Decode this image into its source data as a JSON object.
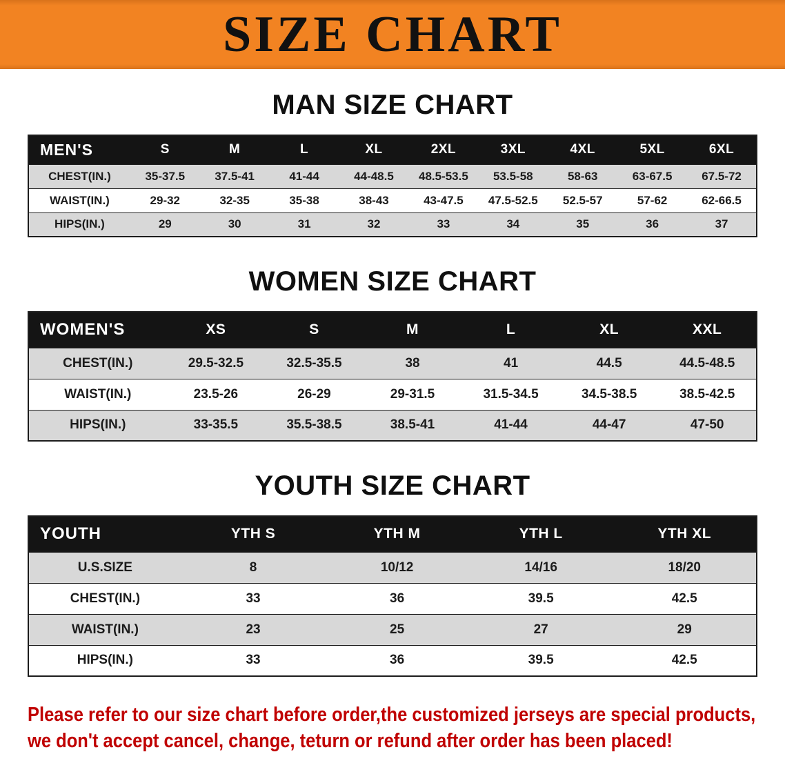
{
  "banner": {
    "title": "SIZE CHART"
  },
  "colors": {
    "banner_bg": "#F28322",
    "banner_bg_edge": "#D9731A",
    "header_bar": "#141414",
    "row_alt": "#D8D8D8",
    "disclaimer_text": "#C00000",
    "title_text": "#111111"
  },
  "sections": [
    {
      "id": "mens",
      "heading": "MAN SIZE CHART",
      "table": {
        "header": [
          "MEN'S",
          "S",
          "M",
          "L",
          "XL",
          "2XL",
          "3XL",
          "4XL",
          "5XL",
          "6XL"
        ],
        "rows": [
          [
            "CHEST(IN.)",
            "35-37.5",
            "37.5-41",
            "41-44",
            "44-48.5",
            "48.5-53.5",
            "53.5-58",
            "58-63",
            "63-67.5",
            "67.5-72"
          ],
          [
            "WAIST(IN.)",
            "29-32",
            "32-35",
            "35-38",
            "38-43",
            "43-47.5",
            "47.5-52.5",
            "52.5-57",
            "57-62",
            "62-66.5"
          ],
          [
            "HIPS(IN.)",
            "29",
            "30",
            "31",
            "32",
            "33",
            "34",
            "35",
            "36",
            "37"
          ]
        ]
      }
    },
    {
      "id": "womens",
      "heading": "WOMEN SIZE CHART",
      "table": {
        "header": [
          "WOMEN'S",
          "XS",
          "S",
          "M",
          "L",
          "XL",
          "XXL"
        ],
        "rows": [
          [
            "CHEST(IN.)",
            "29.5-32.5",
            "32.5-35.5",
            "38",
            "41",
            "44.5",
            "44.5-48.5"
          ],
          [
            "WAIST(IN.)",
            "23.5-26",
            "26-29",
            "29-31.5",
            "31.5-34.5",
            "34.5-38.5",
            "38.5-42.5"
          ],
          [
            "HIPS(IN.)",
            "33-35.5",
            "35.5-38.5",
            "38.5-41",
            "41-44",
            "44-47",
            "47-50"
          ]
        ]
      }
    },
    {
      "id": "youth",
      "heading": "YOUTH SIZE CHART",
      "table": {
        "header": [
          "YOUTH",
          "YTH S",
          "YTH M",
          "YTH L",
          "YTH XL"
        ],
        "rows": [
          [
            "U.S.SIZE",
            "8",
            "10/12",
            "14/16",
            "18/20"
          ],
          [
            "CHEST(IN.)",
            "33",
            "36",
            "39.5",
            "42.5"
          ],
          [
            "WAIST(IN.)",
            "23",
            "25",
            "27",
            "29"
          ],
          [
            "HIPS(IN.)",
            "33",
            "36",
            "39.5",
            "42.5"
          ]
        ]
      }
    }
  ],
  "disclaimer": {
    "lines": [
      "Please refer to our size chart before order,the customized jerseys are special products,",
      "we don't accept cancel, change, teturn or refund after order has been placed!"
    ]
  }
}
